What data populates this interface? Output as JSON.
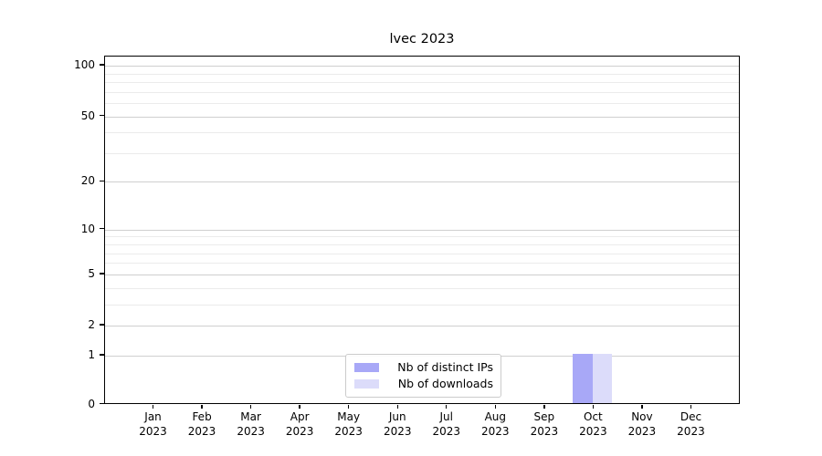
{
  "chart_data": {
    "type": "bar",
    "title": "lvec 2023",
    "categories": [
      "Jan 2023",
      "Feb 2023",
      "Mar 2023",
      "Apr 2023",
      "May 2023",
      "Jun 2023",
      "Jul 2023",
      "Aug 2023",
      "Sep 2023",
      "Oct 2023",
      "Nov 2023",
      "Dec 2023"
    ],
    "series": [
      {
        "name": "Nb of distinct IPs",
        "color": "#a8a8f7",
        "values": [
          0,
          0,
          0,
          0,
          0,
          0,
          0,
          0,
          0,
          1,
          0,
          0
        ]
      },
      {
        "name": "Nb of downloads",
        "color": "#dcdcfa",
        "values": [
          0,
          0,
          0,
          0,
          0,
          0,
          0,
          0,
          0,
          1,
          0,
          0
        ]
      }
    ],
    "xlabel": "",
    "ylabel": "",
    "yscale": "log1p",
    "ylim": [
      0,
      112
    ],
    "y_major_ticks": [
      0,
      1,
      2,
      5,
      10,
      20,
      50,
      100
    ],
    "y_minor_gridlines": [
      3,
      4,
      6,
      7,
      8,
      9,
      30,
      40,
      60,
      70,
      80,
      90
    ],
    "grid": "horizontal, major and minor",
    "legend_position": "lower center inside plot"
  },
  "colors": {
    "background": "#ffffff",
    "axis": "#000000",
    "grid_major": "#cfcfcf",
    "grid_minor": "#ebebeb",
    "bar_distinct_ips": "#a8a8f7",
    "bar_downloads": "#dcdcfa",
    "legend_border": "#cccccc"
  }
}
